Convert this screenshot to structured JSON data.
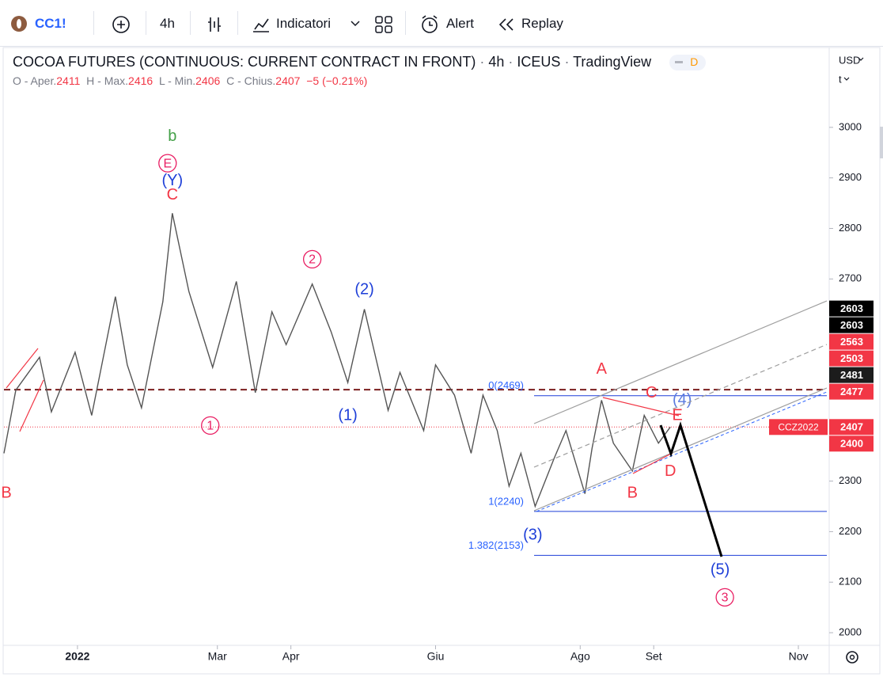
{
  "toolbar": {
    "symbol": "CC1!",
    "interval": "4h",
    "indicators": "Indicatori",
    "alert": "Alert",
    "replay": "Replay"
  },
  "legend": {
    "title": "COCOA FUTURES (CONTINUOUS: CURRENT CONTRACT IN FRONT)",
    "interval": "4h",
    "exchange": "ICEUS",
    "source": "TradingView",
    "badge": "D",
    "open_label": "O - Aper.",
    "open": "2411",
    "high_label": "H - Max.",
    "high": "2416",
    "low_label": "L - Min.",
    "low": "2406",
    "close_label": "C - Chius.",
    "close": "2407",
    "change": "−5 (−0.21%)"
  },
  "axis_controls": {
    "currency": "USD",
    "unit": "t"
  },
  "chart_data": {
    "type": "line",
    "series": [
      {
        "name": "CC1!",
        "color": "#555555",
        "x": [
          0,
          5,
          15,
          20,
          30,
          37,
          47,
          52,
          58,
          67,
          71,
          78,
          88,
          98,
          106,
          113,
          119,
          130,
          138,
          145,
          152,
          162,
          167,
          177,
          182,
          190,
          197,
          202,
          208,
          213,
          218,
          224,
          232,
          237,
          245,
          248,
          252,
          257,
          265,
          270,
          276,
          281
        ],
        "values": [
          2355,
          2480,
          2545,
          2437,
          2555,
          2430,
          2665,
          2530,
          2445,
          2655,
          2830,
          2675,
          2525,
          2695,
          2475,
          2635,
          2570,
          2690,
          2595,
          2495,
          2640,
          2440,
          2515,
          2400,
          2530,
          2470,
          2355,
          2470,
          2400,
          2290,
          2355,
          2250,
          2345,
          2400,
          2275,
          2365,
          2460,
          2375,
          2320,
          2430,
          2375,
          2407
        ]
      }
    ],
    "xlim": [
      0,
      347
    ],
    "xticks": [
      {
        "value": 31,
        "label": "2022"
      },
      {
        "value": 90,
        "label": "Mar"
      },
      {
        "value": 121,
        "label": "Apr"
      },
      {
        "value": 182,
        "label": "Giu"
      },
      {
        "value": 243,
        "label": "Ago"
      },
      {
        "value": 274,
        "label": "Set"
      },
      {
        "value": 335,
        "label": "Nov"
      }
    ],
    "ylim": [
      1975,
      3158
    ],
    "yticks": [
      2000,
      2100,
      2200,
      2300,
      2400,
      2500,
      2600,
      2700,
      2800,
      2900,
      3000
    ],
    "hlines": [
      {
        "value": 2481,
        "style": "dashed",
        "color": "#7b1f1f"
      },
      {
        "value": 2407,
        "style": "dotted",
        "color": "#f23645"
      }
    ],
    "fib_levels": [
      {
        "label": "0(2469)",
        "value": 2469
      },
      {
        "label": "1(2240)",
        "value": 2240
      },
      {
        "label": "1.382(2153)",
        "value": 2153
      }
    ],
    "price_tags": [
      {
        "value": 2603,
        "color": "#000000"
      },
      {
        "value": 2603,
        "color": "#000000"
      },
      {
        "value": 2563,
        "color": "#f23645"
      },
      {
        "value": 2503,
        "color": "#f23645"
      },
      {
        "value": 2481,
        "color": "#1c1c1c"
      },
      {
        "value": 2477,
        "color": "#f23645"
      },
      {
        "value": 2407,
        "color": "#f23645",
        "name": "CCZ2022"
      },
      {
        "value": 2400,
        "color": "#f23645"
      }
    ],
    "annotations": [
      {
        "text": "b",
        "x": 71,
        "y": 2983,
        "color": "#43a047"
      },
      {
        "text": "E",
        "x": 69,
        "y": 2929,
        "color": "#e91e63",
        "circled": true
      },
      {
        "text": "(Y)",
        "x": 71,
        "y": 2895,
        "color": "#1e3fd8"
      },
      {
        "text": "C",
        "x": 71,
        "y": 2867,
        "color": "#f23645"
      },
      {
        "text": "1",
        "x": 87,
        "y": 2410,
        "color": "#e91e63",
        "circled": true
      },
      {
        "text": "2",
        "x": 130,
        "y": 2739,
        "color": "#e91e63",
        "circled": true
      },
      {
        "text": "(2)",
        "x": 152,
        "y": 2680,
        "color": "#1e3fd8"
      },
      {
        "text": "(1)",
        "x": 145,
        "y": 2431,
        "color": "#1e3fd8"
      },
      {
        "text": "(3)",
        "x": 223,
        "y": 2194,
        "color": "#1e3fd8"
      },
      {
        "text": "(4)",
        "x": 286,
        "y": 2461,
        "color": "#5b7be0"
      },
      {
        "text": "(5)",
        "x": 302,
        "y": 2125,
        "color": "#1e3fd8"
      },
      {
        "text": "3",
        "x": 304,
        "y": 2070,
        "color": "#e91e63",
        "circled": true
      },
      {
        "text": "A",
        "x": 252,
        "y": 2522,
        "color": "#f23645"
      },
      {
        "text": "B",
        "x": 265,
        "y": 2277,
        "color": "#f23645"
      },
      {
        "text": "C",
        "x": 273,
        "y": 2475,
        "color": "#f23645"
      },
      {
        "text": "D",
        "x": 281,
        "y": 2320,
        "color": "#f23645"
      },
      {
        "text": "E",
        "x": 284,
        "y": 2431,
        "color": "#f23645"
      },
      {
        "text": "B",
        "x": 1,
        "y": 2277,
        "color": "#f23645"
      }
    ]
  }
}
